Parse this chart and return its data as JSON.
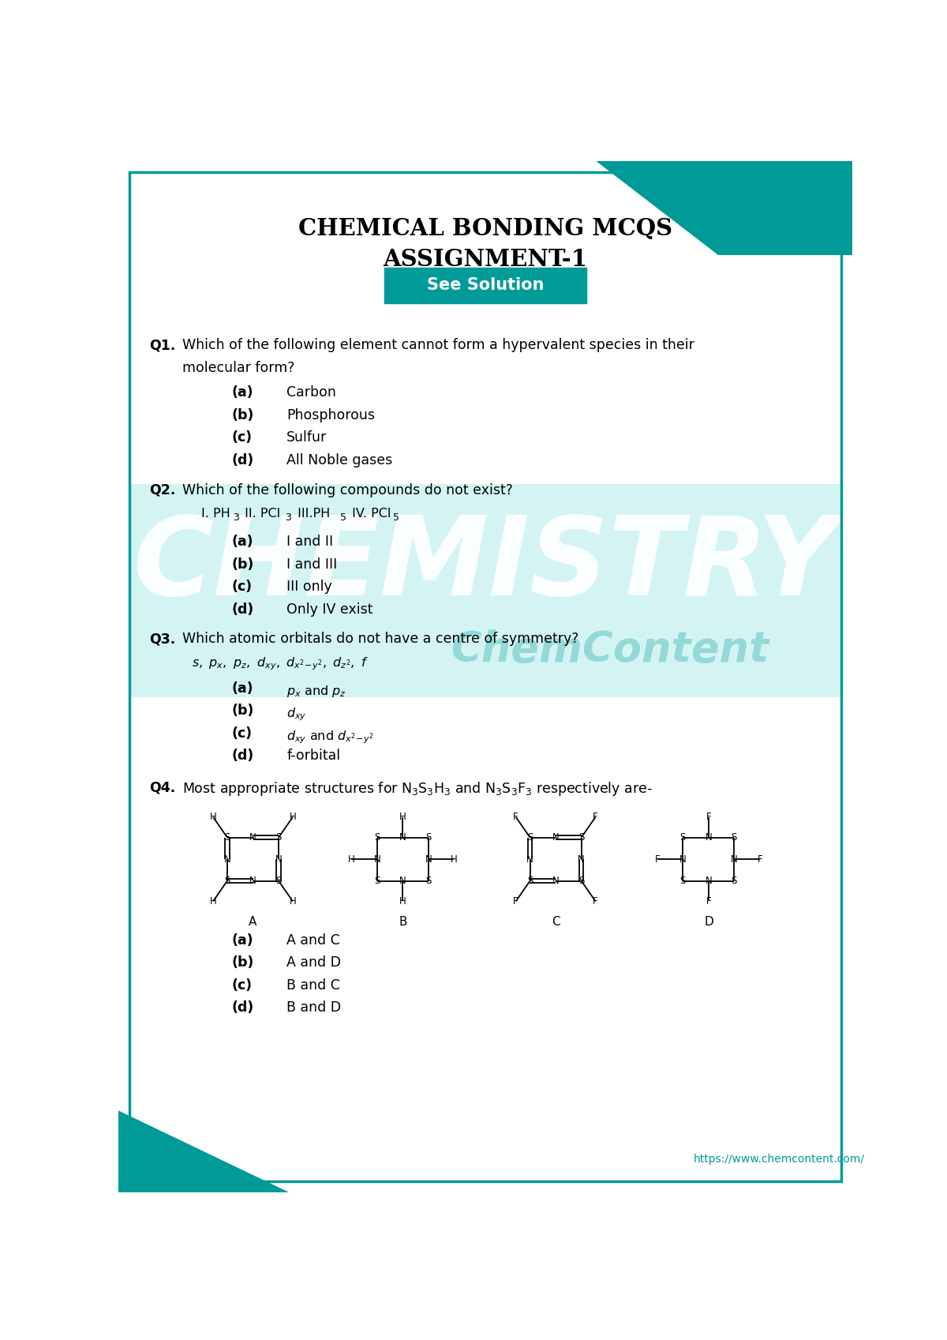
{
  "title1": "CHEMICAL BONDING MCQS",
  "title2": "ASSIGNMENT-1",
  "button_text": "See Solution",
  "teal_color": "#009B99",
  "light_teal": "#B2ECEC",
  "bg_color": "#FFFFFF",
  "border_color": "#009B99",
  "text_color": "#000000",
  "footer": "https://www.chemcontent.com/",
  "page_width": 12.0,
  "page_height": 16.97
}
